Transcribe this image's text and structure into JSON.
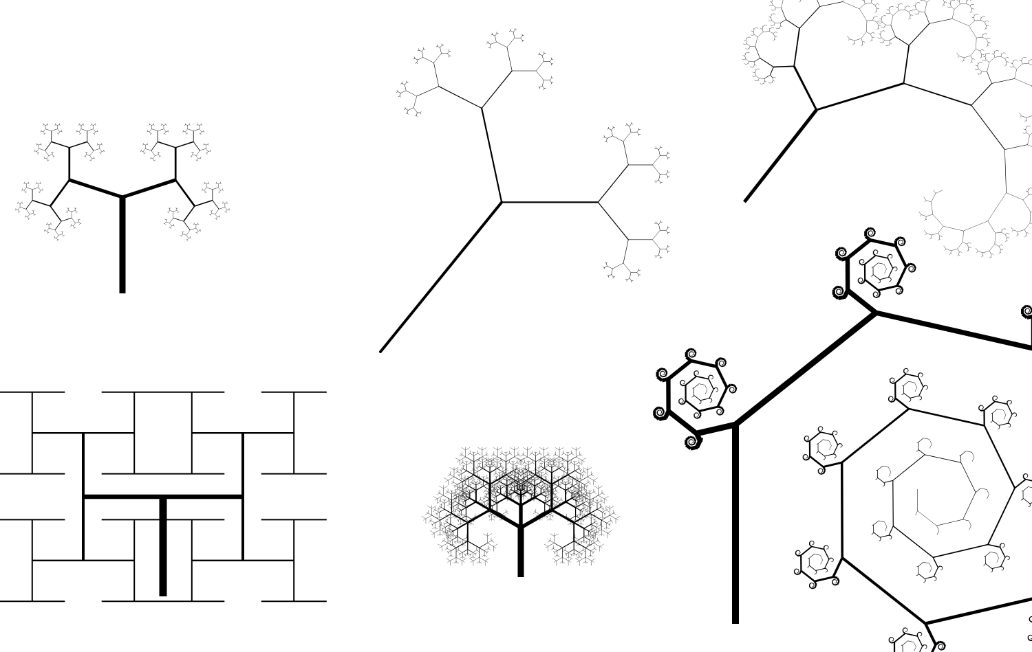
{
  "background": "#ffffff",
  "ink": "#000000",
  "figures": [
    {
      "id": "pentagon-tree",
      "type": "fractal-tree",
      "branches": 5
    },
    {
      "id": "binary-tree",
      "type": "fractal-tree",
      "branches": 2
    },
    {
      "id": "spiral-tree",
      "type": "fractal-tree",
      "branches": 2
    },
    {
      "id": "h-tree",
      "type": "fractal-tree",
      "branches": 2
    },
    {
      "id": "dense-tree",
      "type": "fractal-tree",
      "branches": 3
    },
    {
      "id": "heptagon-spiral",
      "type": "fractal-tree",
      "branches": 2
    }
  ]
}
